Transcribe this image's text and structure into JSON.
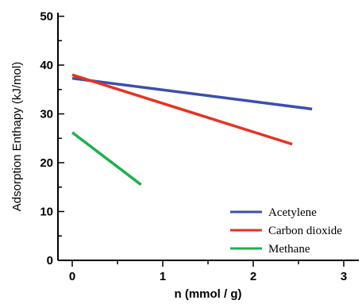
{
  "chart_data": {
    "type": "line",
    "xlabel": "n (mmol / g)",
    "ylabel": "Adsorption Enthapy (kJ/mol)",
    "xlim": [
      -0.15,
      3.2
    ],
    "ylim": [
      0,
      50
    ],
    "x_ticks": [
      "0",
      "1",
      "2",
      "3"
    ],
    "y_ticks": [
      "0",
      "10",
      "20",
      "30",
      "40",
      "50"
    ],
    "grid": false,
    "legend_position": "bottom-right",
    "series": [
      {
        "name": "Acetylene",
        "color": "#3a4fb0",
        "x": [
          0,
          2.65
        ],
        "y": [
          37.3,
          31.0
        ]
      },
      {
        "name": "Carbon dioxide",
        "color": "#e8321e",
        "x": [
          0,
          2.43
        ],
        "y": [
          38.0,
          23.8
        ]
      },
      {
        "name": "Methane",
        "color": "#1fb14a",
        "x": [
          0,
          0.76
        ],
        "y": [
          26.2,
          15.5
        ]
      }
    ]
  }
}
